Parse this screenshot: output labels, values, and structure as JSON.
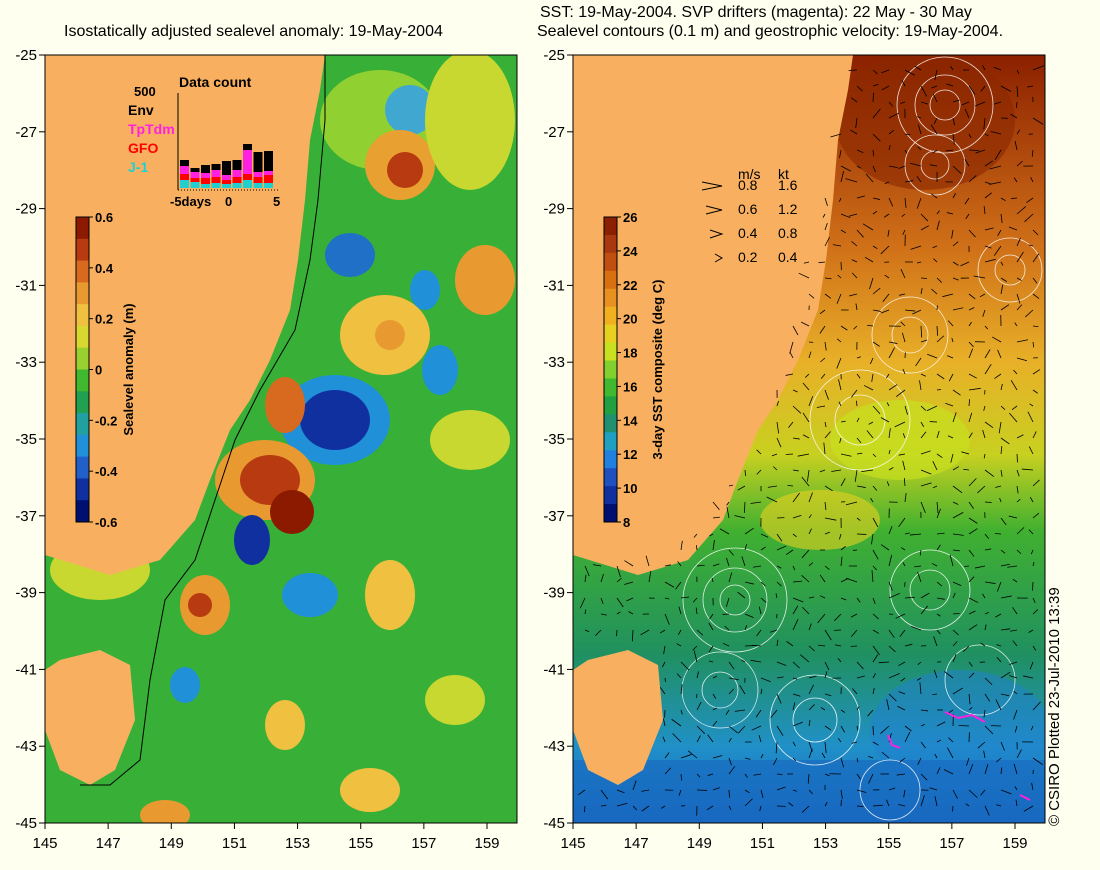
{
  "left_panel": {
    "title": "Isostatically adjusted sealevel anomaly: 19-May-2004",
    "colorbar": {
      "label": "Sealevel anomaly (m)",
      "ticks": [
        "0.6",
        "0.4",
        "0.2",
        "0",
        "-0.2",
        "-0.4",
        "-0.6"
      ],
      "colors": [
        "#8b1a00",
        "#b83a10",
        "#d86a20",
        "#e89a30",
        "#f0c040",
        "#d8d830",
        "#98d030",
        "#40b830",
        "#20a050",
        "#20a0a0",
        "#2090d8",
        "#2060c8",
        "#1030a0",
        "#001070"
      ]
    },
    "inset": {
      "title": "Data count",
      "scale_label": "500",
      "legend": [
        {
          "label": "Env",
          "color": "#000000"
        },
        {
          "label": "TpTdm",
          "color": "#ff20e0"
        },
        {
          "label": "GFO",
          "color": "#ff0000"
        },
        {
          "label": "J-1",
          "color": "#20d0d0"
        }
      ],
      "x_ticks": [
        "-5days",
        "0",
        "5"
      ]
    }
  },
  "right_panel": {
    "title_line1": "SST: 19-May-2004. SVP drifters (magenta): 22 May - 30 May",
    "title_line2": "Sealevel contours (0.1 m) and geostrophic velocity: 19-May-2004.",
    "colorbar": {
      "label": "3-day SST composite (deg C)",
      "ticks": [
        "26",
        "24",
        "22",
        "20",
        "18",
        "16",
        "14",
        "12",
        "10",
        "8"
      ],
      "colors": [
        "#8b2000",
        "#a83810",
        "#c05010",
        "#d87010",
        "#e89020",
        "#f0b020",
        "#e8d020",
        "#c8e020",
        "#80d030",
        "#40b830",
        "#20a040",
        "#209070",
        "#20a0c0",
        "#2080e0",
        "#2050c0",
        "#1030a0",
        "#001070"
      ]
    },
    "velocity_legend": {
      "header_ms": "m/s",
      "header_kt": "kt",
      "rows": [
        {
          "ms": "0.8",
          "kt": "1.6"
        },
        {
          "ms": "0.6",
          "kt": "1.2"
        },
        {
          "ms": "0.4",
          "kt": "0.8"
        },
        {
          "ms": "0.2",
          "kt": "0.4"
        }
      ]
    }
  },
  "axes": {
    "lon_ticks": [
      "145",
      "147",
      "149",
      "151",
      "153",
      "155",
      "157",
      "159"
    ],
    "lat_ticks": [
      "-25",
      "-27",
      "-29",
      "-31",
      "-33",
      "-35",
      "-37",
      "-39",
      "-41",
      "-43",
      "-45"
    ]
  },
  "credit": "© CSIRO Plotted 23-Jul-2010 13:39",
  "colors": {
    "land": "#f8b060",
    "background": "#fffff0"
  }
}
